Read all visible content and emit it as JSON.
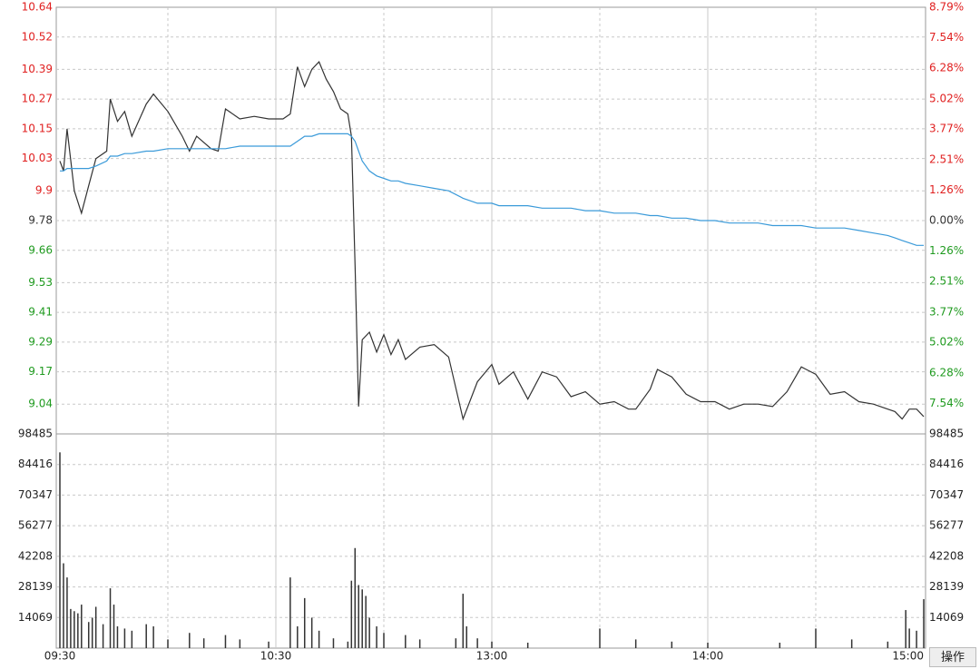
{
  "chart_data": [
    {
      "type": "line",
      "x": [
        0,
        1,
        2,
        4,
        6,
        8,
        10,
        13,
        14,
        16,
        18,
        20,
        24,
        26,
        30,
        34,
        36,
        38,
        42,
        44,
        46,
        50,
        54,
        58,
        62,
        64,
        66,
        68,
        70,
        72,
        74,
        76,
        78,
        80,
        81,
        82,
        83,
        84,
        86,
        88,
        90,
        92,
        94,
        96,
        100,
        104,
        108,
        112,
        116,
        120,
        122,
        126,
        130,
        134,
        138,
        142,
        146,
        150,
        154,
        158,
        160,
        164,
        166,
        170,
        174,
        178,
        182,
        186,
        190,
        194,
        198,
        202,
        206,
        210,
        214,
        218,
        222,
        226,
        230,
        232,
        234,
        236,
        238,
        240
      ],
      "xlim": [
        0,
        240
      ],
      "xticks": [
        {
          "value": 0,
          "label": "09:30"
        },
        {
          "value": 60,
          "label": "10:30"
        },
        {
          "value": 120,
          "label": "13:00"
        },
        {
          "value": 180,
          "label": "14:00"
        },
        {
          "value": 240,
          "label": "15:00"
        }
      ],
      "series": [
        {
          "color": "#333333",
          "values": [
            10.02,
            9.98,
            10.15,
            9.9,
            9.81,
            9.92,
            10.03,
            10.06,
            10.27,
            10.18,
            10.22,
            10.12,
            10.25,
            10.29,
            10.22,
            10.12,
            10.06,
            10.12,
            10.07,
            10.06,
            10.23,
            10.19,
            10.2,
            10.19,
            10.19,
            10.21,
            10.4,
            10.32,
            10.39,
            10.42,
            10.35,
            10.3,
            10.23,
            10.21,
            10.12,
            9.6,
            9.03,
            9.3,
            9.33,
            9.25,
            9.32,
            9.24,
            9.3,
            9.22,
            9.27,
            9.28,
            9.23,
            8.98,
            9.13,
            9.2,
            9.12,
            9.17,
            9.06,
            9.17,
            9.15,
            9.07,
            9.09,
            9.04,
            9.05,
            9.02,
            9.02,
            9.1,
            9.18,
            9.15,
            9.08,
            9.05,
            9.05,
            9.02,
            9.04,
            9.04,
            9.03,
            9.09,
            9.19,
            9.16,
            9.08,
            9.09,
            9.05,
            9.04,
            9.02,
            9.01,
            8.98,
            9.02,
            9.02,
            8.99
          ]
        },
        {
          "color": "#3a9ad9",
          "values": [
            9.98,
            9.98,
            9.99,
            9.99,
            9.99,
            9.99,
            10.0,
            10.02,
            10.04,
            10.04,
            10.05,
            10.05,
            10.06,
            10.06,
            10.07,
            10.07,
            10.07,
            10.07,
            10.07,
            10.07,
            10.07,
            10.08,
            10.08,
            10.08,
            10.08,
            10.08,
            10.1,
            10.12,
            10.12,
            10.13,
            10.13,
            10.13,
            10.13,
            10.13,
            10.12,
            10.1,
            10.06,
            10.02,
            9.98,
            9.96,
            9.95,
            9.94,
            9.94,
            9.93,
            9.92,
            9.91,
            9.9,
            9.87,
            9.85,
            9.85,
            9.84,
            9.84,
            9.84,
            9.83,
            9.83,
            9.83,
            9.82,
            9.82,
            9.81,
            9.81,
            9.81,
            9.8,
            9.8,
            9.79,
            9.79,
            9.78,
            9.78,
            9.77,
            9.77,
            9.77,
            9.76,
            9.76,
            9.76,
            9.75,
            9.75,
            9.75,
            9.74,
            9.73,
            9.72,
            9.71,
            9.7,
            9.69,
            9.68,
            9.68
          ]
        }
      ],
      "ylim": [
        8.92,
        10.64
      ],
      "yticks": [
        10.64,
        10.52,
        10.39,
        10.27,
        10.15,
        10.03,
        9.9,
        9.78,
        9.66,
        9.53,
        9.41,
        9.29,
        9.17,
        9.04
      ],
      "y2lim": [
        -8.79,
        8.79
      ],
      "y2ticks": [
        {
          "value": 8.79,
          "label": "8.79%"
        },
        {
          "value": 7.54,
          "label": "7.54%"
        },
        {
          "value": 6.28,
          "label": "6.28%"
        },
        {
          "value": 5.02,
          "label": "5.02%"
        },
        {
          "value": 3.77,
          "label": "3.77%"
        },
        {
          "value": 2.51,
          "label": "2.51%"
        },
        {
          "value": 1.26,
          "label": "1.26%"
        },
        {
          "value": 0,
          "label": "0.00%"
        },
        {
          "value": -1.26,
          "label": "1.26%"
        },
        {
          "value": -2.51,
          "label": "2.51%"
        },
        {
          "value": -3.77,
          "label": "3.77%"
        },
        {
          "value": -5.02,
          "label": "5.02%"
        },
        {
          "value": -6.28,
          "label": "6.28%"
        },
        {
          "value": -7.54,
          "label": "7.54%"
        }
      ],
      "up_color": "#e02020",
      "down_color": "#1f9a1f",
      "flat_color": "#333333",
      "grid": true
    },
    {
      "type": "bar",
      "x": [
        0,
        1,
        2,
        3,
        4,
        5,
        6,
        8,
        9,
        10,
        12,
        14,
        15,
        16,
        18,
        20,
        24,
        26,
        30,
        36,
        40,
        46,
        50,
        58,
        64,
        66,
        68,
        70,
        72,
        76,
        80,
        81,
        82,
        83,
        84,
        85,
        86,
        88,
        90,
        96,
        100,
        110,
        112,
        113,
        116,
        120,
        130,
        150,
        160,
        170,
        180,
        200,
        210,
        220,
        230,
        235,
        236,
        238,
        240
      ],
      "values": [
        90000,
        39000,
        32500,
        18000,
        17000,
        16000,
        20000,
        12000,
        14000,
        19000,
        11000,
        27500,
        20000,
        10000,
        9000,
        8000,
        11000,
        10000,
        4000,
        7000,
        4500,
        6000,
        4000,
        3000,
        32500,
        10000,
        23000,
        14000,
        8000,
        4500,
        3000,
        31000,
        46000,
        29000,
        27000,
        24000,
        14000,
        10000,
        7000,
        6000,
        4000,
        4500,
        25000,
        10000,
        4500,
        3000,
        2500,
        9000,
        4000,
        3000,
        2500,
        2500,
        9000,
        4000,
        3000,
        17500,
        9000,
        8000,
        22500
      ],
      "color": "#333333",
      "xlim": [
        0,
        240
      ],
      "ylim": [
        0,
        98485
      ],
      "yticks": [
        98485,
        84416,
        70347,
        56277,
        42208,
        28139,
        14069
      ],
      "grid": true
    }
  ],
  "toolbar": {
    "button": "操作"
  }
}
